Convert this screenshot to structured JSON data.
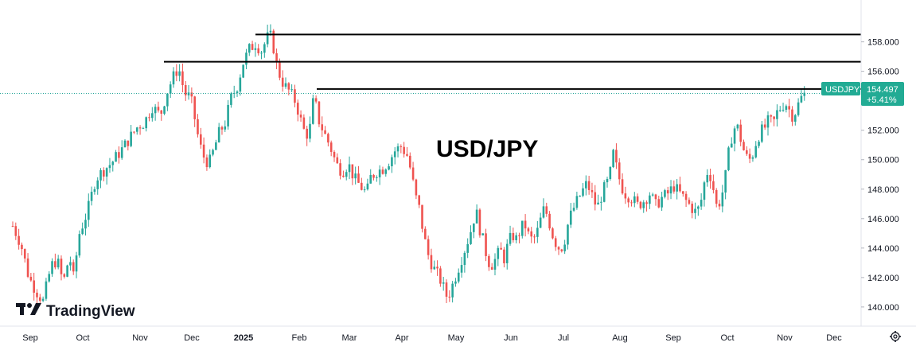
{
  "chart_data": {
    "type": "candlestick",
    "title": "USD/JPY",
    "brand": "TradingView",
    "y_range": [
      139.4,
      159.6
    ],
    "y_ticks": [
      "158.000",
      "156.000",
      "154.000",
      "152.000",
      "150.000",
      "148.000",
      "146.000",
      "144.000",
      "142.000",
      "140.000"
    ],
    "x_ticks": [
      "Sep",
      "Oct",
      "Nov",
      "Dec",
      "2025",
      "Feb",
      "Mar",
      "Apr",
      "May",
      "Jun",
      "Jul",
      "Aug",
      "Sep",
      "Oct",
      "Nov",
      "Dec"
    ],
    "x_tick_bold": "2025",
    "symbol": "USDJPY",
    "last_price": "154.497",
    "change_pct": "+5.41%",
    "last_value": 154.497,
    "resistance_levels": [
      {
        "value": 158.5,
        "from": "Jan 2025"
      },
      {
        "value": 156.65,
        "from": "Nov 2024"
      },
      {
        "value": 154.8,
        "from": "Feb 2025"
      }
    ],
    "colors": {
      "up": "#26a69a",
      "down": "#ef5350",
      "line": "#000000",
      "badge": "#22ab94",
      "axis_text": "#131722"
    },
    "price_path": [
      [
        0,
        145.5
      ],
      [
        8,
        144.3
      ],
      [
        16,
        142.0
      ],
      [
        24,
        141.0
      ],
      [
        30,
        140.4
      ],
      [
        38,
        142.8
      ],
      [
        44,
        143.2
      ],
      [
        50,
        141.6
      ],
      [
        56,
        143.5
      ],
      [
        60,
        142.0
      ],
      [
        66,
        145.0
      ],
      [
        74,
        146.5
      ],
      [
        82,
        148.7
      ],
      [
        90,
        149.3
      ],
      [
        98,
        149.8
      ],
      [
        108,
        150.7
      ],
      [
        116,
        151.5
      ],
      [
        124,
        152.3
      ],
      [
        130,
        152.5
      ],
      [
        138,
        153.6
      ],
      [
        146,
        153.0
      ],
      [
        152,
        154.5
      ],
      [
        158,
        155.5
      ],
      [
        164,
        156.3
      ],
      [
        170,
        154.5
      ],
      [
        176,
        154.2
      ],
      [
        180,
        152.8
      ],
      [
        184,
        151.3
      ],
      [
        188,
        150.3
      ],
      [
        194,
        149.7
      ],
      [
        198,
        150.5
      ],
      [
        204,
        151.8
      ],
      [
        210,
        152.5
      ],
      [
        216,
        154.2
      ],
      [
        222,
        155.0
      ],
      [
        228,
        156.6
      ],
      [
        234,
        157.5
      ],
      [
        240,
        157.9
      ],
      [
        246,
        157.4
      ],
      [
        250,
        158.0
      ],
      [
        254,
        158.6
      ],
      [
        258,
        157.6
      ],
      [
        262,
        156.1
      ],
      [
        268,
        155.1
      ],
      [
        274,
        154.6
      ],
      [
        280,
        153.9
      ],
      [
        286,
        152.4
      ],
      [
        290,
        151.6
      ],
      [
        294,
        152.2
      ],
      [
        298,
        154.4
      ],
      [
        302,
        152.8
      ],
      [
        308,
        151.8
      ],
      [
        314,
        150.9
      ],
      [
        320,
        149.7
      ],
      [
        326,
        149.2
      ],
      [
        332,
        149.7
      ],
      [
        338,
        148.7
      ],
      [
        344,
        148.2
      ],
      [
        350,
        147.7
      ],
      [
        354,
        148.8
      ],
      [
        360,
        149.2
      ],
      [
        366,
        149.4
      ],
      [
        372,
        149.9
      ],
      [
        378,
        150.6
      ],
      [
        384,
        150.9
      ],
      [
        390,
        150.3
      ],
      [
        394,
        149.2
      ],
      [
        398,
        147.6
      ],
      [
        402,
        146.7
      ],
      [
        406,
        145.1
      ],
      [
        410,
        143.7
      ],
      [
        414,
        143.0
      ],
      [
        418,
        142.4
      ],
      [
        422,
        142.0
      ],
      [
        426,
        141.3
      ],
      [
        430,
        140.6
      ],
      [
        434,
        141.3
      ],
      [
        438,
        142.1
      ],
      [
        442,
        142.9
      ],
      [
        446,
        143.7
      ],
      [
        450,
        144.5
      ],
      [
        454,
        145.4
      ],
      [
        458,
        146.6
      ],
      [
        462,
        145.3
      ],
      [
        466,
        144.3
      ],
      [
        470,
        143.1
      ],
      [
        474,
        142.9
      ],
      [
        478,
        143.3
      ],
      [
        482,
        143.9
      ],
      [
        486,
        143.3
      ],
      [
        490,
        144.3
      ],
      [
        494,
        144.9
      ],
      [
        498,
        144.6
      ],
      [
        502,
        145.2
      ],
      [
        506,
        145.7
      ],
      [
        510,
        144.9
      ],
      [
        514,
        144.5
      ],
      [
        518,
        144.9
      ],
      [
        522,
        145.9
      ],
      [
        526,
        146.8
      ],
      [
        530,
        145.9
      ],
      [
        534,
        144.9
      ],
      [
        538,
        144.2
      ],
      [
        542,
        143.9
      ],
      [
        546,
        144.6
      ],
      [
        550,
        145.9
      ],
      [
        556,
        146.9
      ],
      [
        562,
        147.7
      ],
      [
        568,
        148.4
      ],
      [
        574,
        147.4
      ],
      [
        578,
        146.7
      ],
      [
        584,
        147.9
      ],
      [
        590,
        148.7
      ],
      [
        594,
        150.4
      ],
      [
        598,
        149.2
      ],
      [
        602,
        148.2
      ],
      [
        606,
        147.7
      ],
      [
        612,
        147.4
      ],
      [
        618,
        146.9
      ],
      [
        624,
        147.2
      ],
      [
        630,
        147.7
      ],
      [
        636,
        146.9
      ],
      [
        642,
        147.4
      ],
      [
        648,
        147.7
      ],
      [
        654,
        148.2
      ],
      [
        660,
        147.7
      ],
      [
        666,
        147.2
      ],
      [
        672,
        146.7
      ],
      [
        676,
        146.4
      ],
      [
        680,
        146.9
      ],
      [
        684,
        148.4
      ],
      [
        688,
        149.4
      ],
      [
        692,
        148.4
      ],
      [
        696,
        146.9
      ],
      [
        700,
        147.2
      ],
      [
        704,
        148.4
      ],
      [
        708,
        150.4
      ],
      [
        712,
        151.9
      ],
      [
        716,
        152.4
      ],
      [
        720,
        151.4
      ],
      [
        724,
        150.4
      ],
      [
        728,
        149.9
      ],
      [
        732,
        150.4
      ],
      [
        736,
        151.4
      ],
      [
        740,
        151.9
      ],
      [
        744,
        152.2
      ],
      [
        748,
        152.7
      ],
      [
        752,
        152.4
      ],
      [
        756,
        153.2
      ],
      [
        760,
        153.6
      ],
      [
        764,
        153.9
      ],
      [
        768,
        153.4
      ],
      [
        772,
        152.9
      ],
      [
        776,
        153.6
      ],
      [
        780,
        154.2
      ],
      [
        784,
        154.5
      ]
    ]
  }
}
